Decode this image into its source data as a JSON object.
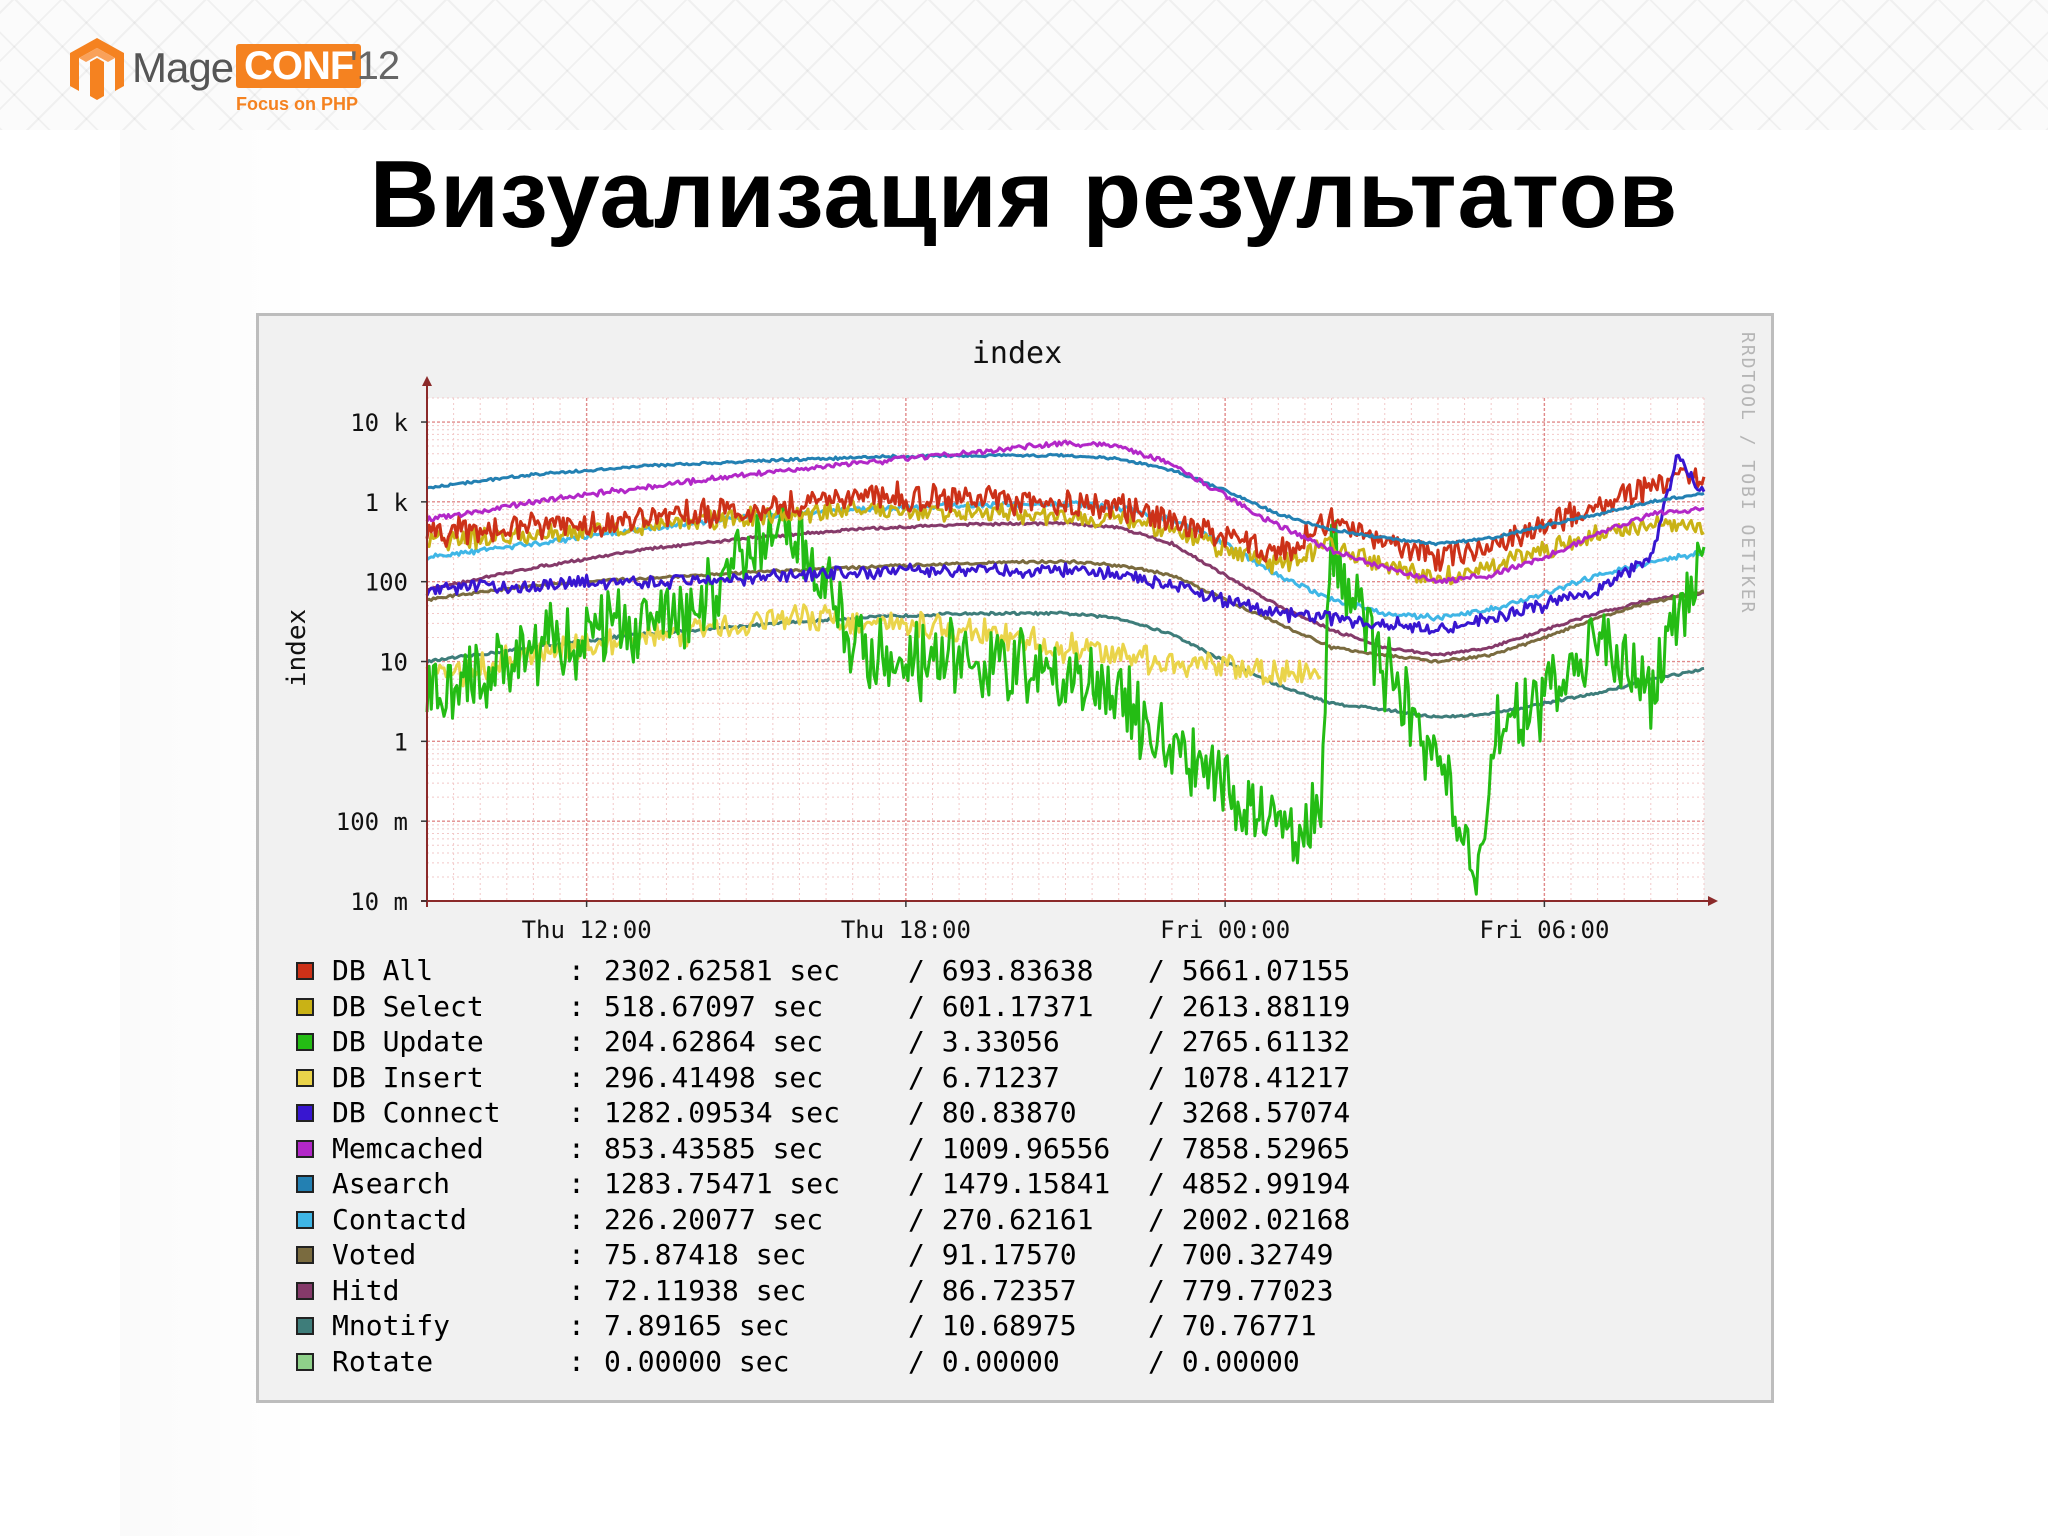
{
  "header": {
    "logo_mage": "Mage",
    "logo_conf": "CONF",
    "logo_year": "'12",
    "logo_tagline": "Focus on PHP"
  },
  "slide_title": "Визуализация результатов",
  "colors": {
    "frame_bg": "#f1f1f1",
    "plot_bg": "#ffffff",
    "grid_minor": "#f2c8c8",
    "grid_major": "#e08a8a",
    "axis": "#8b2a2a"
  },
  "chart_data": {
    "type": "line",
    "title": "index",
    "ylabel": "index",
    "watermark": "RRDTOOL / TOBI OETIKER",
    "y_scale": "log",
    "ylim": [
      0.01,
      20000
    ],
    "y_ticks": [
      {
        "value": 10000,
        "label": "10 k"
      },
      {
        "value": 1000,
        "label": "1 k"
      },
      {
        "value": 100,
        "label": "100"
      },
      {
        "value": 10,
        "label": "10"
      },
      {
        "value": 1,
        "label": "1"
      },
      {
        "value": 0.1,
        "label": "100 m"
      },
      {
        "value": 0.01,
        "label": "10 m"
      }
    ],
    "x_range": [
      "Thu 09:00",
      "Fri 09:00"
    ],
    "x_ticks": [
      {
        "value": 3,
        "label": "Thu 12:00"
      },
      {
        "value": 9,
        "label": "Thu 18:00"
      },
      {
        "value": 15,
        "label": "Fri 00:00"
      },
      {
        "value": 21,
        "label": "Fri 06:00"
      }
    ],
    "x_unit": "hours since Thu 09:00",
    "grid": true,
    "legend_position": "bottom",
    "series": [
      {
        "name": "DB All",
        "color": "#cc3118",
        "current": "2302.62581 sec",
        "average": "/ 693.83638",
        "maximum": "/ 5661.07155",
        "noise": 0.1,
        "points": [
          [
            0,
            400
          ],
          [
            2,
            500
          ],
          [
            4,
            600
          ],
          [
            6,
            800
          ],
          [
            8,
            1200
          ],
          [
            10,
            1100
          ],
          [
            11,
            1000
          ],
          [
            12,
            950
          ],
          [
            13,
            850
          ],
          [
            14,
            600
          ],
          [
            15,
            350
          ],
          [
            16,
            220
          ],
          [
            17,
            600
          ],
          [
            18,
            300
          ],
          [
            19,
            200
          ],
          [
            20,
            280
          ],
          [
            21,
            500
          ],
          [
            22,
            900
          ],
          [
            23,
            1500
          ],
          [
            24,
            2300
          ]
        ]
      },
      {
        "name": "DB Select",
        "color": "#c9b215",
        "current": "518.67097 sec",
        "average": "/ 601.17371",
        "maximum": "/ 2613.88119",
        "noise": 0.07,
        "points": [
          [
            0,
            320
          ],
          [
            2,
            400
          ],
          [
            4,
            500
          ],
          [
            6,
            650
          ],
          [
            8,
            800
          ],
          [
            10,
            750
          ],
          [
            11,
            700
          ],
          [
            12,
            650
          ],
          [
            13,
            600
          ],
          [
            14,
            420
          ],
          [
            15,
            250
          ],
          [
            16,
            160
          ],
          [
            17,
            300
          ],
          [
            18,
            150
          ],
          [
            19,
            110
          ],
          [
            20,
            150
          ],
          [
            21,
            250
          ],
          [
            22,
            400
          ],
          [
            23,
            500
          ],
          [
            24,
            520
          ]
        ]
      },
      {
        "name": "DB Update",
        "color": "#24bc14",
        "current": "204.62864 sec",
        "average": "/ 3.33056",
        "maximum": "/ 2765.61132",
        "noise": 0.3,
        "points": [
          [
            0,
            4
          ],
          [
            1,
            6
          ],
          [
            2,
            15
          ],
          [
            3,
            25
          ],
          [
            4,
            30
          ],
          [
            5,
            60
          ],
          [
            6,
            200
          ],
          [
            7,
            400
          ],
          [
            8,
            15
          ],
          [
            9,
            12
          ],
          [
            10,
            10
          ],
          [
            11,
            8
          ],
          [
            12,
            6
          ],
          [
            13,
            4
          ],
          [
            14,
            0.8
          ],
          [
            15,
            0.3
          ],
          [
            16,
            0.08
          ],
          [
            16.8,
            0.12
          ],
          [
            17,
            300
          ],
          [
            18,
            8
          ],
          [
            19,
            0.5
          ],
          [
            19.8,
            0.02
          ],
          [
            20,
            1
          ],
          [
            21,
            3
          ],
          [
            22,
            20
          ],
          [
            23,
            5
          ],
          [
            24,
            200
          ]
        ]
      },
      {
        "name": "DB Insert",
        "color": "#ead44a",
        "current": "296.41498 sec",
        "average": "/ 6.71237",
        "maximum": "/ 1078.41217",
        "noise": 0.1,
        "points": [
          [
            0,
            6
          ],
          [
            2,
            12
          ],
          [
            4,
            20
          ],
          [
            6,
            30
          ],
          [
            7,
            40
          ],
          [
            8,
            30
          ],
          [
            10,
            25
          ],
          [
            12,
            15
          ],
          [
            14,
            10
          ],
          [
            15,
            8
          ],
          [
            16,
            7
          ],
          [
            16.8,
            7
          ]
        ]
      },
      {
        "name": "DB Connect",
        "color": "#3816d0",
        "current": "1282.09534 sec",
        "average": "/ 80.83870",
        "maximum": "/ 3268.57074",
        "noise": 0.05,
        "points": [
          [
            0,
            80
          ],
          [
            2,
            90
          ],
          [
            3,
            100
          ],
          [
            4,
            100
          ],
          [
            6,
            110
          ],
          [
            8,
            130
          ],
          [
            10,
            140
          ],
          [
            12,
            140
          ],
          [
            13,
            120
          ],
          [
            14,
            90
          ],
          [
            15,
            60
          ],
          [
            16,
            40
          ],
          [
            17,
            35
          ],
          [
            18,
            30
          ],
          [
            19,
            25
          ],
          [
            20,
            35
          ],
          [
            21,
            50
          ],
          [
            22,
            80
          ],
          [
            23,
            200
          ],
          [
            23.5,
            4000
          ],
          [
            24,
            1200
          ]
        ]
      },
      {
        "name": "Memcached",
        "color": "#b227c8",
        "current": "853.43585 sec",
        "average": "/ 1009.96556",
        "maximum": "/ 7858.52965",
        "noise": 0.02,
        "points": [
          [
            0,
            600
          ],
          [
            2,
            1000
          ],
          [
            4,
            1500
          ],
          [
            6,
            2200
          ],
          [
            8,
            3000
          ],
          [
            10,
            4000
          ],
          [
            12,
            5500
          ],
          [
            13,
            5000
          ],
          [
            14,
            3000
          ],
          [
            15,
            1200
          ],
          [
            16,
            500
          ],
          [
            17,
            250
          ],
          [
            18,
            150
          ],
          [
            19,
            100
          ],
          [
            20,
            120
          ],
          [
            21,
            200
          ],
          [
            22,
            400
          ],
          [
            23,
            700
          ],
          [
            24,
            850
          ]
        ]
      },
      {
        "name": "Asearch",
        "color": "#2380b2",
        "current": "1283.75471 sec",
        "average": "/ 1479.15841",
        "maximum": "/ 4852.99194",
        "noise": 0.01,
        "points": [
          [
            0,
            1500
          ],
          [
            2,
            2200
          ],
          [
            4,
            2800
          ],
          [
            6,
            3200
          ],
          [
            8,
            3600
          ],
          [
            10,
            3800
          ],
          [
            12,
            3800
          ],
          [
            13,
            3500
          ],
          [
            14,
            2500
          ],
          [
            15,
            1400
          ],
          [
            16,
            700
          ],
          [
            17,
            450
          ],
          [
            18,
            350
          ],
          [
            19,
            300
          ],
          [
            20,
            350
          ],
          [
            21,
            500
          ],
          [
            22,
            700
          ],
          [
            23,
            1000
          ],
          [
            24,
            1280
          ]
        ]
      },
      {
        "name": "Contactd",
        "color": "#3fb6e6",
        "current": "226.20077 sec",
        "average": "/ 270.62161",
        "maximum": "/ 2002.02168",
        "noise": 0.02,
        "points": [
          [
            0,
            200
          ],
          [
            2,
            300
          ],
          [
            4,
            450
          ],
          [
            6,
            650
          ],
          [
            8,
            800
          ],
          [
            10,
            900
          ],
          [
            12,
            950
          ],
          [
            13,
            850
          ],
          [
            14,
            600
          ],
          [
            15,
            300
          ],
          [
            16,
            120
          ],
          [
            17,
            60
          ],
          [
            18,
            40
          ],
          [
            19,
            35
          ],
          [
            20,
            45
          ],
          [
            21,
            70
          ],
          [
            22,
            120
          ],
          [
            23,
            180
          ],
          [
            24,
            230
          ]
        ]
      },
      {
        "name": "Voted",
        "color": "#7a6b3f",
        "current": "75.87418 sec",
        "average": "/ 91.17570",
        "maximum": "/ 700.32749",
        "noise": 0.01,
        "points": [
          [
            0,
            60
          ],
          [
            2,
            90
          ],
          [
            4,
            110
          ],
          [
            6,
            130
          ],
          [
            8,
            150
          ],
          [
            10,
            170
          ],
          [
            12,
            180
          ],
          [
            13,
            160
          ],
          [
            14,
            120
          ],
          [
            15,
            60
          ],
          [
            16,
            30
          ],
          [
            17,
            15
          ],
          [
            18,
            12
          ],
          [
            19,
            10
          ],
          [
            20,
            12
          ],
          [
            21,
            20
          ],
          [
            22,
            35
          ],
          [
            23,
            55
          ],
          [
            24,
            75
          ]
        ]
      },
      {
        "name": "Hitd",
        "color": "#853a6a",
        "current": "72.11938 sec",
        "average": "/ 86.72357",
        "maximum": "/ 779.77023",
        "noise": 0.01,
        "points": [
          [
            0,
            80
          ],
          [
            2,
            150
          ],
          [
            4,
            250
          ],
          [
            6,
            350
          ],
          [
            8,
            450
          ],
          [
            10,
            520
          ],
          [
            12,
            540
          ],
          [
            13,
            480
          ],
          [
            14,
            300
          ],
          [
            15,
            120
          ],
          [
            16,
            50
          ],
          [
            17,
            25
          ],
          [
            18,
            15
          ],
          [
            19,
            12
          ],
          [
            20,
            15
          ],
          [
            21,
            25
          ],
          [
            22,
            40
          ],
          [
            23,
            60
          ],
          [
            24,
            72
          ]
        ]
      },
      {
        "name": "Mnotify",
        "color": "#3e7d7a",
        "current": "7.89165 sec",
        "average": "/ 10.68975",
        "maximum": "/ 70.76771",
        "noise": 0.01,
        "points": [
          [
            0,
            10
          ],
          [
            2,
            15
          ],
          [
            4,
            22
          ],
          [
            6,
            28
          ],
          [
            8,
            35
          ],
          [
            10,
            40
          ],
          [
            12,
            40
          ],
          [
            13,
            35
          ],
          [
            14,
            22
          ],
          [
            15,
            10
          ],
          [
            16,
            5
          ],
          [
            17,
            3
          ],
          [
            18,
            2.5
          ],
          [
            19,
            2
          ],
          [
            20,
            2.2
          ],
          [
            21,
            3
          ],
          [
            22,
            4
          ],
          [
            23,
            6
          ],
          [
            24,
            7.9
          ]
        ]
      },
      {
        "name": "Rotate",
        "color": "#8fd18a",
        "current": "0.00000 sec",
        "average": "/ 0.00000",
        "maximum": "/ 0.00000",
        "noise": 0,
        "points": []
      }
    ]
  }
}
